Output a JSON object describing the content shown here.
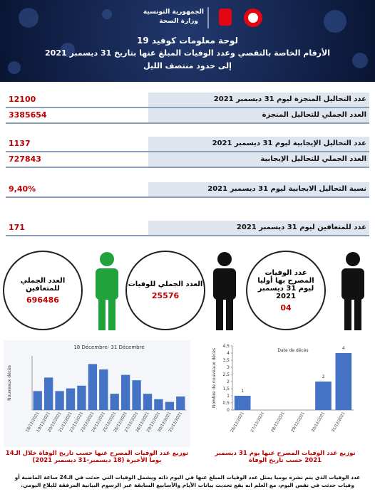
{
  "header": {
    "republic": "الجمهورية التونسية",
    "ministry": "وزارة الصحة",
    "title": "لوحة معلومات كوفيد 19",
    "subtitle": "الأرقام الخاصة بالتقصي وعدد الوفيات المبلغ عنها بتاريخ 31 ديسمبر 2021",
    "subtitle2": "إلى حدود منتصف الليل"
  },
  "rows": [
    {
      "label": "عدد التحاليل المنجزة ليوم 31 ديسمبر 2021",
      "value": "12100"
    },
    {
      "label": "العدد الجملي للتحاليل المنجزة",
      "value": "3385654"
    },
    {
      "label": "عدد التحاليل الإيجابية ليوم 31 ديسمبر 2021",
      "value": "1137"
    },
    {
      "label": "العدد الجملي للتحاليل الإيجابية",
      "value": "727843"
    },
    {
      "label": "نسبة التحاليل الايجابية ليوم 31 ديسمبر 2021",
      "value": "9,40%"
    },
    {
      "label": "عدد للمتعافين ليوم 31 ديسمبر 2021",
      "value": "171"
    }
  ],
  "circles": [
    {
      "label": "العدد الجملي للمتعافين",
      "value": "696486"
    },
    {
      "label": "العدد الجملي للوفيات",
      "value": "25576"
    },
    {
      "label": "عدد الوفيات المصرح بها أوليا ليوم 31 ديسمبر 2021",
      "value": "04"
    }
  ],
  "chart_data": [
    {
      "type": "bar",
      "title": "18 Décembre- 31 Décembre",
      "ylabel": "Nouveaux décès",
      "categories": [
        "18/12/2021",
        "19/12/2021",
        "20/12/2021",
        "21/12/2021",
        "22/12/2021",
        "23/12/2021",
        "24/12/2021",
        "25/12/2021",
        "26/12/2021",
        "27/12/2021",
        "28/12/2021",
        "29/12/2021",
        "30/12/2021",
        "31/12/2021"
      ],
      "values": [
        3.5,
        6,
        3.5,
        4,
        4.5,
        8.5,
        7.5,
        3,
        6.5,
        5.5,
        3,
        2,
        1.5,
        2.5
      ],
      "color": "#4472c4",
      "ylim": [
        0,
        10
      ]
    },
    {
      "type": "bar",
      "ylabel": "Nombre de nouveaux décès",
      "xlabel": "Date de décès",
      "categories": [
        "26/12/2021",
        "27/12/2021",
        "28/12/2021",
        "29/12/2021",
        "30/12/2021",
        "31/12/2021"
      ],
      "values": [
        1,
        0,
        0,
        0,
        2,
        4
      ],
      "color": "#4472c4",
      "ylim": [
        0,
        4.5
      ],
      "yticks": [
        0,
        {
          "value": 0.5,
          "label": "0,5"
        },
        1,
        {
          "value": 1.5,
          "label": "1,5"
        },
        2,
        {
          "value": 2.5,
          "label": "2,5"
        },
        3,
        {
          "value": 3.5,
          "label": "3,5"
        },
        4,
        {
          "value": 4.5,
          "label": "4,5"
        }
      ]
    }
  ],
  "captions": {
    "left": "توزيع عدد الوفيات المصرح عنها حسب تاريخ الوفاة خلال الـ14 يوما الأخيرة (18 ديسمبر-31 ديسمبر 2021)",
    "right": "توزيع عدد الوفيات المصرح عنها يوم 31 ديسمبر 2021 حسب تاريخ الوفاة",
    "footnote": "عدد الوفيات الذي يتم نشره يوميا يمثل عدد الوفيات المبلغ عنها في اليوم ذاته ويشمل الوفيات التي حدثت في الـ24 ساعة الماضية أو وفيات حدثت في نفس اليوم، مع العلم انه يقع تحديث بيانات الأيام والأسابيع السابقة عبر الرسوم البيانية المرفقة للبلاغ اليومي."
  }
}
